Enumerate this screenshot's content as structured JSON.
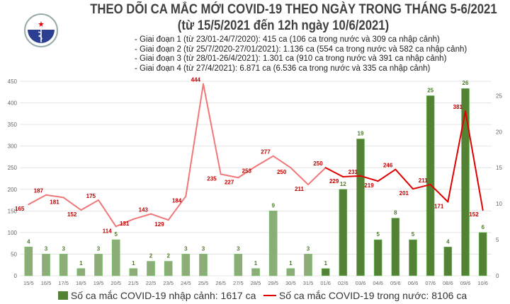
{
  "header": {
    "title": "THEO DÕI CA MẮC MỚI COVID-19 THEO NGÀY TRONG THÁNG 5-6/2021",
    "subtitle": "(từ 15/5/2021 đến 12h ngày 10/6/2021)",
    "notes": [
      "- Giai đoạn 1 (từ 23/01-24/7/2020): 415 ca (106 ca trong nước và 309 ca nhập cảnh)",
      "- Giai đoạn 2 (từ 25/7/2020-27/01/2021): 1.136 ca (554 ca trong nước và 582 ca nhập cảnh)",
      "- Giai đoạn 3 (từ 28/01-26/4/2021): 1.301 ca (910 ca trong nước và 391 ca nhập cảnh)",
      "- Giai đoạn 4 (từ 27/4/2021): 6.871 ca (6.536 ca trong nước và 335 ca nhập cảnh)"
    ],
    "logo_text": "BỘ Y TẾ MINISTRY OF HEALTH"
  },
  "chart_data": {
    "type": "bar+line",
    "categories": [
      "15/5",
      "16/5",
      "17/5",
      "18/5",
      "19/5",
      "20/5",
      "21/5",
      "22/5",
      "23/5",
      "24/5",
      "25/5",
      "26/5",
      "27/5",
      "28/5",
      "29/5",
      "30/5",
      "31/5",
      "01/6",
      "02/6",
      "03/6",
      "04/6",
      "05/6",
      "06/6",
      "07/6",
      "08/6",
      "09/6",
      "10/6"
    ],
    "series": [
      {
        "name": "Số ca mắc COVID-19 nhập cảnh: 1617 ca",
        "type": "bar",
        "axis": "right",
        "values": [
          4,
          3,
          3,
          1,
          3,
          5,
          1,
          2,
          2,
          3,
          3,
          0,
          3,
          1,
          9,
          1,
          3,
          1,
          12,
          19,
          5,
          8,
          5,
          25,
          4,
          26,
          6
        ],
        "colors": {
          "may": "#8cad78",
          "june": "#548235"
        }
      },
      {
        "name": "Số ca mắc COVID-19 trong nước: 8106 ca",
        "type": "line",
        "axis": "left",
        "values": [
          165,
          187,
          181,
          152,
          175,
          114,
          131,
          143,
          129,
          184,
          444,
          235,
          227,
          253,
          277,
          250,
          211,
          250,
          229,
          231,
          219,
          246,
          201,
          211,
          171,
          381,
          152
        ],
        "colors": {
          "may": "#f07878",
          "june": "#e00000"
        }
      }
    ],
    "left_axis": {
      "range": [
        0,
        450
      ],
      "ticks": [
        0,
        50,
        100,
        150,
        200,
        250,
        300,
        350,
        400,
        450
      ]
    },
    "right_axis": {
      "range": [
        0,
        27
      ],
      "ticks": [
        0,
        5,
        10,
        15,
        20,
        25
      ]
    },
    "grid": true,
    "legend": "bottom"
  }
}
